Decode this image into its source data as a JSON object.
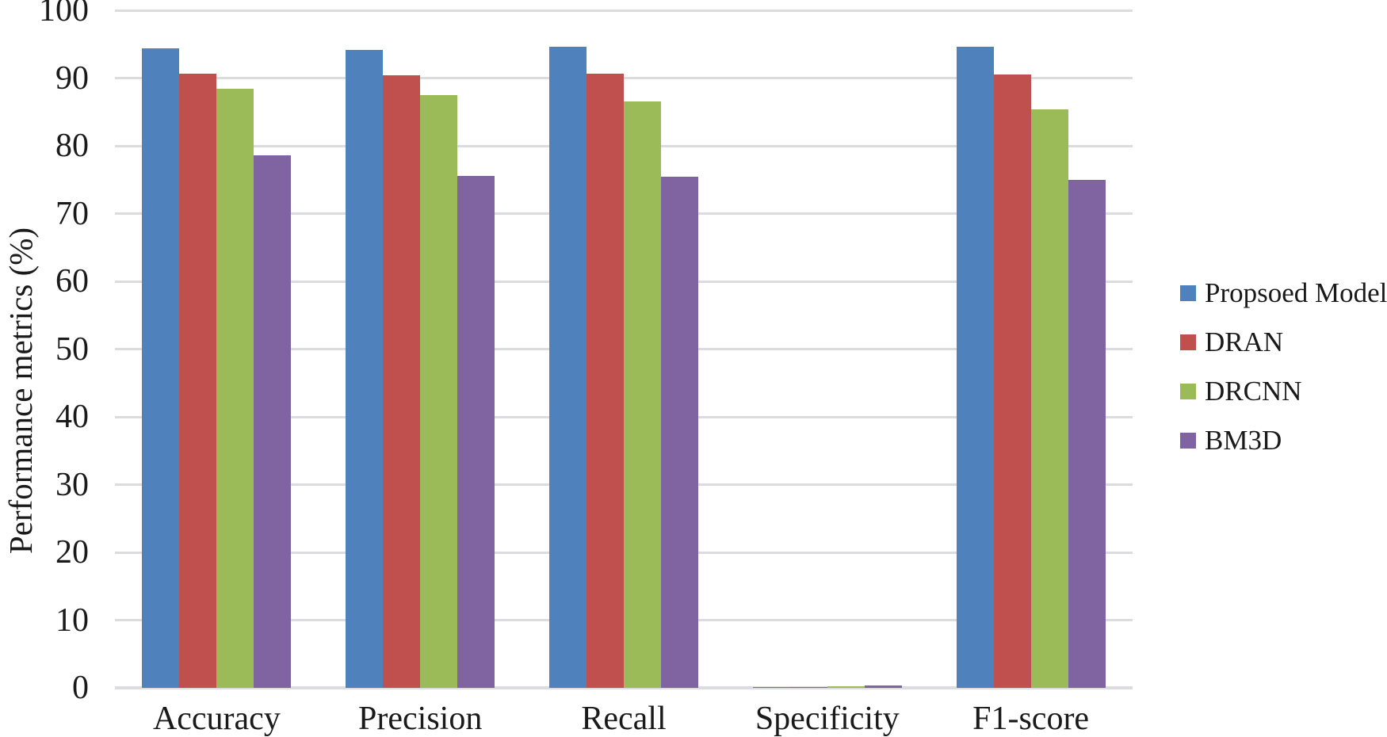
{
  "chart_data": {
    "type": "bar",
    "title": "",
    "xlabel": "",
    "ylabel": "Performance metrics (%)",
    "ylim": [
      0,
      100
    ],
    "yticks": [
      0,
      10,
      20,
      30,
      40,
      50,
      60,
      70,
      80,
      90,
      100
    ],
    "grid": true,
    "legend_position": "right",
    "categories": [
      "Accuracy",
      "Precision",
      "Recall",
      "Specificity",
      "F1-score"
    ],
    "series": [
      {
        "name": "Propsoed Model",
        "color": "#4F81BD",
        "values": [
          94.4,
          94.1,
          94.6,
          0.15,
          94.6
        ]
      },
      {
        "name": "DRAN",
        "color": "#C0504D",
        "values": [
          90.6,
          90.4,
          90.6,
          0.15,
          90.5
        ]
      },
      {
        "name": "DRCNN",
        "color": "#9BBB59",
        "values": [
          88.4,
          87.5,
          86.5,
          0.2,
          85.4
        ]
      },
      {
        "name": "BM3D",
        "color": "#8064A2",
        "values": [
          78.6,
          75.5,
          75.4,
          0.35,
          75.0
        ]
      }
    ],
    "colors": {
      "gridline": "#dcdce0",
      "text": "#1a1a1a",
      "background": "#ffffff"
    }
  }
}
